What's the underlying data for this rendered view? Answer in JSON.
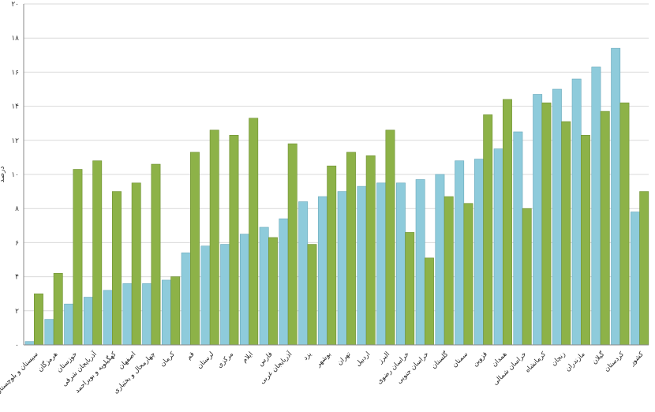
{
  "chart_data": {
    "type": "bar",
    "title": "",
    "xlabel": "",
    "ylabel": "درصد",
    "ylim": [
      0,
      20
    ],
    "y_ticks": [
      "۰",
      "۲",
      "۴",
      "۶",
      "۸",
      "۱۰",
      "۱۲",
      "۱۴",
      "۱۶",
      "۱۸",
      "۲۰"
    ],
    "y_tick_values": [
      0,
      2,
      4,
      6,
      8,
      10,
      12,
      14,
      16,
      18,
      20
    ],
    "grid": true,
    "colors": {
      "series_blue": "#8ecbdb",
      "series_green": "#8db248",
      "grid": "#d9d9d9",
      "axis": "#888888"
    },
    "categories": [
      "سیستان و بلوچستان",
      "هرمزگان",
      "خوزستان",
      "آذربایجان شرقی",
      "کهگیلویه و بویراحمد",
      "اصفهان",
      "چهارمحال و بختیاری",
      "کرمان",
      "قم",
      "لرستان",
      "مرکزی",
      "ایلام",
      "فارس",
      "آذربایجان غربی",
      "یزد",
      "بوشهر",
      "تهران",
      "اردبیل",
      "البرز",
      "خراسان رضوی",
      "خراسان جنوبی",
      "گلستان",
      "سمنان",
      "قزوین",
      "همدان",
      "خراسان شمالی",
      "کرمانشاه",
      "زنجان",
      "مازندران",
      "گیلان",
      "کردستان",
      "کشور"
    ],
    "series": [
      {
        "values": [
          0.2,
          1.5,
          2.4,
          2.8,
          3.2,
          3.6,
          3.6,
          3.8,
          5.4,
          5.8,
          5.9,
          6.5,
          6.9,
          7.4,
          8.4,
          8.7,
          9.0,
          9.3,
          9.5,
          9.5,
          9.7,
          10.0,
          10.8,
          10.9,
          11.5,
          12.5,
          14.7,
          15.0,
          15.6,
          16.3,
          17.4,
          7.8
        ]
      },
      {
        "values": [
          3.0,
          4.2,
          10.3,
          10.8,
          9.0,
          9.5,
          10.6,
          4.0,
          11.3,
          12.6,
          12.3,
          13.3,
          6.3,
          11.8,
          5.9,
          10.5,
          11.3,
          11.1,
          12.6,
          6.6,
          5.1,
          8.7,
          8.3,
          13.5,
          14.4,
          8.0,
          14.2,
          13.1,
          12.3,
          13.7,
          14.2,
          9.0
        ]
      }
    ]
  }
}
